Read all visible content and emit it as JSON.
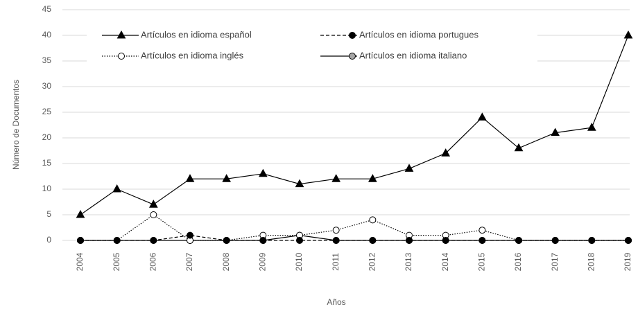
{
  "chart_data": {
    "type": "line",
    "x_label": "Años",
    "y_label": "Número de Documentos",
    "categories": [
      "2004",
      "2005",
      "2006",
      "2007",
      "2008",
      "2009",
      "2010",
      "2011",
      "2012",
      "2013",
      "2014",
      "2015",
      "2016",
      "2017",
      "2018",
      "2019"
    ],
    "series": [
      {
        "name": "Artículos en idioma español",
        "color": "#000000",
        "line_style": "solid",
        "marker": "triangle",
        "marker_fill": "#000000",
        "values": [
          5,
          10,
          7,
          12,
          12,
          13,
          11,
          12,
          12,
          14,
          17,
          24,
          18,
          21,
          22,
          40
        ]
      },
      {
        "name": "Artículos en idioma portugues",
        "color": "#000000",
        "line_style": "dashed",
        "marker": "circle",
        "marker_fill": "#000000",
        "values": [
          0,
          0,
          0,
          1,
          0,
          0,
          0,
          0,
          0,
          0,
          0,
          0,
          0,
          0,
          0,
          0
        ]
      },
      {
        "name": "Artículos en idioma inglés",
        "color": "#000000",
        "line_style": "dotted",
        "marker": "circle",
        "marker_fill": "#ffffff",
        "values": [
          0,
          0,
          5,
          0,
          0,
          1,
          1,
          2,
          4,
          1,
          1,
          2,
          0,
          0,
          0,
          0
        ]
      },
      {
        "name": "Artículos en idioma italiano",
        "color": "#000000",
        "line_style": "solid",
        "marker": "circle",
        "marker_fill": "#a6a6a6",
        "values": [
          0,
          0,
          0,
          0,
          0,
          0,
          1,
          0,
          0,
          0,
          0,
          0,
          0,
          0,
          0,
          0
        ]
      }
    ],
    "ylim": [
      0,
      45
    ],
    "yticks": [
      0,
      5,
      10,
      15,
      20,
      25,
      30,
      35,
      40,
      45
    ],
    "grid": true
  }
}
